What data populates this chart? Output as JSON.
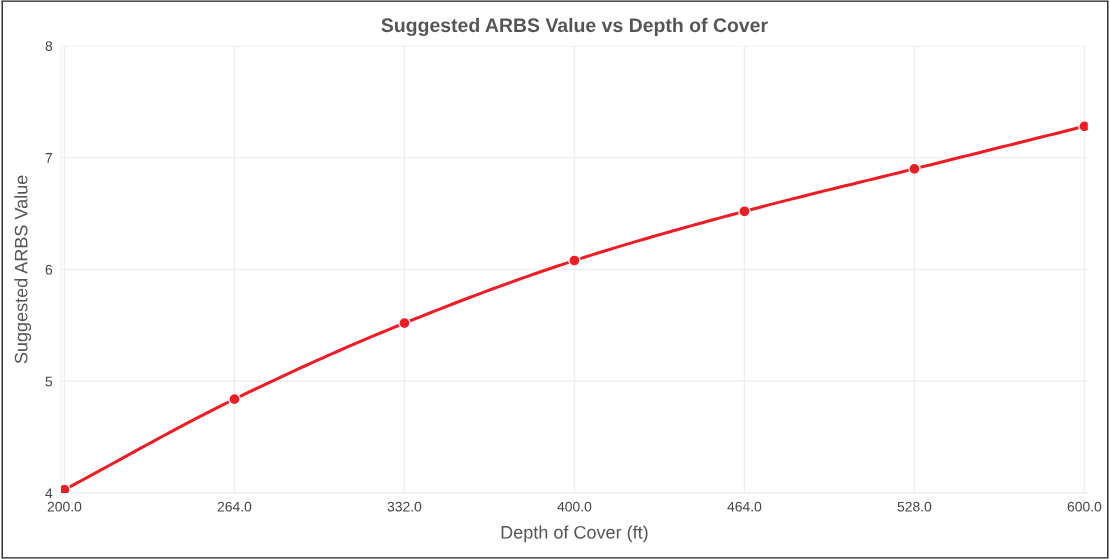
{
  "chart_data": {
    "type": "line",
    "title": "Suggested ARBS Value vs Depth of Cover",
    "xlabel": "Depth of Cover (ft)",
    "ylabel": "Suggested ARBS Value",
    "categories": [
      "200.0",
      "264.0",
      "332.0",
      "400.0",
      "464.0",
      "528.0",
      "600.0"
    ],
    "series": [
      {
        "color": "#ee1c25",
        "values": [
          4.03,
          4.84,
          5.52,
          6.08,
          6.52,
          6.9,
          7.28
        ]
      }
    ],
    "ylim": [
      4,
      8
    ],
    "yticks": [
      4,
      5,
      6,
      7,
      8
    ],
    "grid": true,
    "marker": "circle",
    "line_style": "solid"
  }
}
